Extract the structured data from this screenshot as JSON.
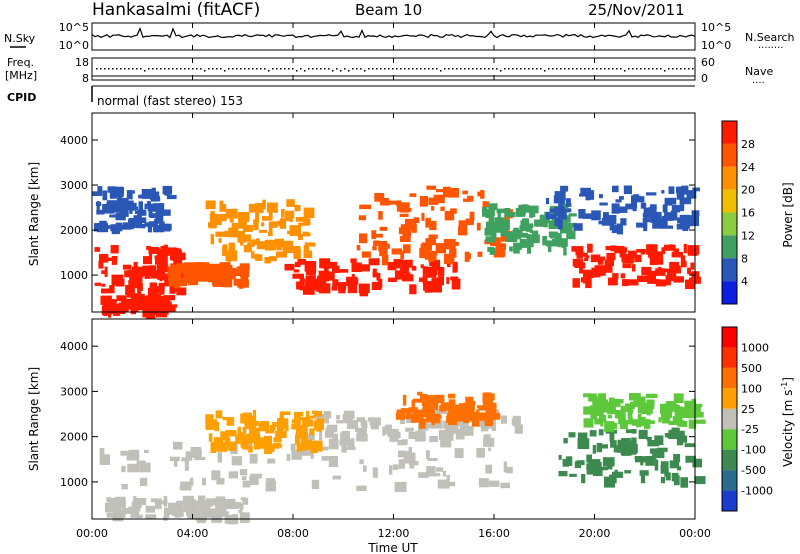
{
  "header": {
    "station": "Hankasalmi (fitACF)",
    "beam": "Beam 10",
    "date": "25/Nov/2011"
  },
  "panels": {
    "nsky": {
      "label": "N.Sky",
      "left_top": "10^5",
      "left_bottom": "10^0",
      "right_top": "10^5",
      "right_bottom": "10^0",
      "right_label": "N.Search",
      "right_marker": "........"
    },
    "freq": {
      "label_1": "Freq.",
      "label_2": "[MHz]",
      "left_top": "18",
      "left_bottom": "8",
      "right_top": "60",
      "right_bottom": "0",
      "right_label": "Nave",
      "right_marker": "...."
    },
    "cpid": {
      "label": "CPID",
      "mode": "normal (fast stereo) 153"
    }
  },
  "chart_data": [
    {
      "type": "heatmap",
      "title": "",
      "xlabel": "",
      "ylabel": "Slant Range [km]",
      "xlim": [
        "00:00",
        "24:00"
      ],
      "ylim": [
        180,
        4600
      ],
      "y_ticks": [
        "1000",
        "2000",
        "3000",
        "4000"
      ],
      "x_ticks": [
        "00:00",
        "04:00",
        "08:00",
        "12:00",
        "16:00",
        "20:00",
        "00:00"
      ],
      "colorbar": {
        "label": "Power [dB]",
        "ticks": [
          "4",
          "8",
          "12",
          "16",
          "20",
          "24",
          "28"
        ],
        "colors": [
          "#0a1fe0",
          "#2a57b5",
          "#40a060",
          "#8ccc40",
          "#f0c000",
          "#ff9000",
          "#ff5500",
          "#ff1a00"
        ]
      },
      "regions": [
        {
          "t0": 0.1,
          "t1": 3.5,
          "r0": 700,
          "r1": 1700,
          "level": "#ff1a00"
        },
        {
          "t0": 0.3,
          "t1": 3.0,
          "r0": 250,
          "r1": 600,
          "level": "#ff1a00"
        },
        {
          "t0": 3.0,
          "t1": 6.0,
          "r0": 900,
          "r1": 1300,
          "level": "#ff5500"
        },
        {
          "t0": 4.5,
          "t1": 8.5,
          "r0": 1400,
          "r1": 2700,
          "level": "#ff9000"
        },
        {
          "t0": 7.5,
          "t1": 14.5,
          "r0": 700,
          "r1": 1400,
          "level": "#ff1a00"
        },
        {
          "t0": 10.5,
          "t1": 16.5,
          "r0": 1400,
          "r1": 3000,
          "level": "#ff5500"
        },
        {
          "t0": 15.5,
          "t1": 19.0,
          "r0": 1600,
          "r1": 2600,
          "level": "#40a060"
        },
        {
          "t0": 19.0,
          "t1": 24.0,
          "r0": 900,
          "r1": 1700,
          "level": "#ff1a00"
        },
        {
          "t0": 0.0,
          "t1": 3.0,
          "r0": 2100,
          "r1": 3000,
          "level": "#2a57b5"
        },
        {
          "t0": 18.0,
          "t1": 24.0,
          "r0": 2100,
          "r1": 3000,
          "level": "#2a57b5"
        }
      ]
    },
    {
      "type": "heatmap",
      "title": "",
      "xlabel": "Time UT",
      "ylabel": "Slant Range [km]",
      "xlim": [
        "00:00",
        "24:00"
      ],
      "ylim": [
        180,
        4600
      ],
      "y_ticks": [
        "1000",
        "2000",
        "3000",
        "4000"
      ],
      "x_ticks": [
        "00:00",
        "04:00",
        "08:00",
        "12:00",
        "16:00",
        "20:00",
        "00:00"
      ],
      "colorbar": {
        "label": "Velocity [m s^-1]",
        "ticks": [
          "1000",
          "500",
          "100",
          "25",
          "-25",
          "-100",
          "-500",
          "-1000"
        ],
        "colors": [
          "#1a3ccf",
          "#2a6a8a",
          "#3d8a50",
          "#5cc83a",
          "#c0c0b8",
          "#ffa000",
          "#ff7000",
          "#ff3000",
          "#ff0000"
        ]
      },
      "regions": [
        {
          "t0": 0.3,
          "t1": 16.5,
          "r0": 900,
          "r1": 1900,
          "level": "#c0c0b8"
        },
        {
          "t0": 0.5,
          "t1": 6.0,
          "r0": 250,
          "r1": 700,
          "level": "#c0c0b8"
        },
        {
          "t0": 8.5,
          "t1": 17.0,
          "r0": 1900,
          "r1": 2600,
          "level": "#c0c0b8"
        },
        {
          "t0": 4.5,
          "t1": 9.0,
          "r0": 1800,
          "r1": 2600,
          "level": "#ffa000"
        },
        {
          "t0": 12.0,
          "t1": 16.0,
          "r0": 2400,
          "r1": 3000,
          "level": "#ff7000"
        },
        {
          "t0": 18.5,
          "t1": 24.0,
          "r0": 1100,
          "r1": 2200,
          "level": "#3d8a50"
        },
        {
          "t0": 19.5,
          "t1": 24.0,
          "r0": 2300,
          "r1": 3000,
          "level": "#5cc83a"
        }
      ]
    }
  ]
}
